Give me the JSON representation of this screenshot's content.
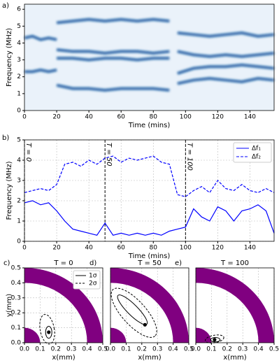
{
  "chart_data": [
    {
      "type": "spectrogram",
      "panel_label": "a)",
      "xlabel": "Time (mins)",
      "ylabel": "Frequency (MHz)",
      "xlim": [
        0,
        155
      ],
      "ylim": [
        0,
        6.3
      ],
      "xticks": [
        0,
        20,
        40,
        60,
        80,
        100,
        120,
        140
      ],
      "yticks": [
        0,
        1,
        2,
        3,
        4,
        5,
        6
      ],
      "background": "#eaf2fa",
      "color": "#08519c",
      "tracks": [
        {
          "x": [
            0,
            5,
            10,
            15,
            20
          ],
          "values": [
            4.3,
            4.4,
            4.2,
            4.3,
            4.2
          ]
        },
        {
          "x": [
            0,
            5,
            10,
            15,
            20
          ],
          "values": [
            2.3,
            2.3,
            2.4,
            2.3,
            2.4
          ]
        },
        {
          "x": [
            20,
            30,
            40,
            50,
            60,
            70,
            80,
            90
          ],
          "values": [
            5.2,
            5.3,
            5.4,
            5.3,
            5.4,
            5.3,
            5.4,
            5.3
          ]
        },
        {
          "x": [
            20,
            30,
            40,
            50,
            60,
            70,
            80,
            90
          ],
          "values": [
            3.6,
            3.5,
            3.5,
            3.4,
            3.5,
            3.5,
            3.4,
            3.5
          ]
        },
        {
          "x": [
            20,
            30,
            40,
            50,
            60,
            70,
            80,
            90
          ],
          "values": [
            3.1,
            3.1,
            3.0,
            3.1,
            3.1,
            3.0,
            3.1,
            3.1
          ]
        },
        {
          "x": [
            20,
            30,
            40,
            50,
            60,
            70,
            80,
            90
          ],
          "values": [
            1.5,
            1.3,
            1.3,
            1.2,
            1.3,
            1.3,
            1.3,
            1.2
          ]
        },
        {
          "x": [
            95,
            105,
            115,
            125,
            135,
            145,
            155
          ],
          "values": [
            4.6,
            4.5,
            4.4,
            4.5,
            4.6,
            4.4,
            4.5
          ]
        },
        {
          "x": [
            95,
            105,
            115,
            125,
            135,
            145,
            155
          ],
          "values": [
            3.5,
            3.3,
            3.2,
            3.3,
            3.2,
            3.3,
            3.4
          ]
        },
        {
          "x": [
            95,
            105,
            115,
            125,
            135,
            145,
            155
          ],
          "values": [
            2.2,
            2.5,
            2.6,
            2.6,
            2.7,
            2.6,
            2.5
          ]
        },
        {
          "x": [
            95,
            105,
            115,
            125,
            135,
            145,
            155
          ],
          "values": [
            1.6,
            1.8,
            1.9,
            1.8,
            1.7,
            1.9,
            1.8
          ]
        }
      ]
    },
    {
      "type": "line",
      "panel_label": "b)",
      "xlabel": "Time (mins)",
      "ylabel": "Frequency (MHz)",
      "xlim": [
        0,
        155
      ],
      "ylim": [
        0,
        5
      ],
      "xticks": [
        0,
        20,
        40,
        60,
        80,
        100,
        120,
        140
      ],
      "yticks": [
        0,
        1,
        2,
        3,
        4,
        5
      ],
      "grid": true,
      "legend": "upper right",
      "x": [
        0,
        5,
        10,
        15,
        20,
        25,
        30,
        35,
        40,
        45,
        50,
        55,
        60,
        65,
        70,
        75,
        80,
        85,
        90,
        95,
        100,
        105,
        110,
        115,
        120,
        125,
        130,
        135,
        140,
        145,
        150,
        155
      ],
      "series": [
        {
          "name": "Δf₁",
          "color": "#0000ff",
          "linestyle": "solid",
          "values": [
            1.9,
            2.0,
            1.8,
            1.9,
            1.5,
            1.0,
            0.6,
            0.5,
            0.4,
            0.3,
            0.9,
            0.3,
            0.4,
            0.3,
            0.4,
            0.3,
            0.4,
            0.3,
            0.5,
            0.6,
            0.7,
            1.6,
            1.2,
            1.0,
            1.7,
            1.5,
            1.0,
            1.5,
            1.6,
            1.8,
            1.5,
            0.4
          ]
        },
        {
          "name": "Δf₂",
          "color": "#0000ff",
          "linestyle": "dashed",
          "values": [
            2.4,
            2.5,
            2.6,
            2.5,
            2.8,
            3.8,
            3.9,
            3.7,
            4.0,
            3.8,
            4.1,
            4.2,
            3.9,
            4.1,
            4.0,
            4.1,
            4.2,
            3.9,
            3.8,
            2.3,
            2.2,
            2.5,
            2.7,
            2.4,
            3.0,
            2.6,
            2.5,
            2.8,
            2.5,
            2.4,
            2.6,
            2.4
          ]
        }
      ],
      "vlines": [
        {
          "x": 0,
          "label": "T = 0"
        },
        {
          "x": 50,
          "label": "T = 50"
        },
        {
          "x": 100,
          "label": "T = 100"
        }
      ]
    },
    {
      "type": "contour",
      "panel_label": "c)",
      "title": "T = 0",
      "xlabel": "x(mm)",
      "ylabel": "y(mm)",
      "xlim": [
        0,
        0.5
      ],
      "ylim": [
        0,
        0.5
      ],
      "grid": true,
      "legend": "upper right",
      "region_color": "#800080",
      "xticks": [
        {
          "value": 0,
          "label": "0.0"
        },
        0.1,
        0.2,
        0.3,
        0.4,
        0.5
      ],
      "yticks": [
        {
          "value": 0,
          "label": "0.0"
        },
        0.1,
        0.2,
        0.3,
        0.4,
        0.5
      ],
      "annulus": [
        0.4,
        0.5
      ],
      "disk": 0.1,
      "contours": [
        {
          "name": "1σ",
          "linestyle": "solid",
          "cx": 0.155,
          "cy": 0.07,
          "rx": 0.02,
          "ry": 0.04,
          "angle": 0
        },
        {
          "name": "2σ",
          "linestyle": "dashed",
          "cx": 0.145,
          "cy": 0.09,
          "rx": 0.045,
          "ry": 0.1,
          "angle": 10
        }
      ],
      "point": [
        0.155,
        0.07
      ]
    },
    {
      "type": "contour",
      "panel_label": "d)",
      "title": "T = 50",
      "xlabel": "x(mm)",
      "xlim": [
        0,
        0.5
      ],
      "ylim": [
        0,
        0.5
      ],
      "grid": true,
      "region_color": "#800080",
      "xticks": [
        {
          "value": 0,
          "label": "0.0"
        },
        0.1,
        0.2,
        0.3,
        0.4,
        0.5
      ],
      "annulus": [
        0.4,
        0.5
      ],
      "disk": 0.1,
      "contours": [
        {
          "linestyle": "solid",
          "cx": 0.14,
          "cy": 0.22,
          "rx": 0.13,
          "ry": 0.035,
          "angle": -45
        },
        {
          "linestyle": "dashed",
          "cx": 0.15,
          "cy": 0.2,
          "rx": 0.2,
          "ry": 0.08,
          "angle": -48
        }
      ],
      "point": [
        0.22,
        0.12
      ]
    },
    {
      "type": "contour",
      "panel_label": "e)",
      "title": "T = 100",
      "xlabel": "x(mm)",
      "xlim": [
        0,
        0.5
      ],
      "ylim": [
        0,
        0.5
      ],
      "grid": true,
      "region_color": "#800080",
      "xticks": [
        {
          "value": 0,
          "label": "0.0"
        },
        0.1,
        0.2,
        0.3,
        0.4,
        0.5
      ],
      "annulus": [
        0.4,
        0.5
      ],
      "disk": 0.1,
      "contours": [
        {
          "linestyle": "solid",
          "cx": 0.125,
          "cy": 0.02,
          "rx": 0.03,
          "ry": 0.015,
          "angle": 0
        },
        {
          "linestyle": "dashed",
          "cx": 0.12,
          "cy": 0.025,
          "rx": 0.06,
          "ry": 0.025,
          "angle": 10
        }
      ],
      "point": [
        0.12,
        0.02
      ]
    }
  ]
}
